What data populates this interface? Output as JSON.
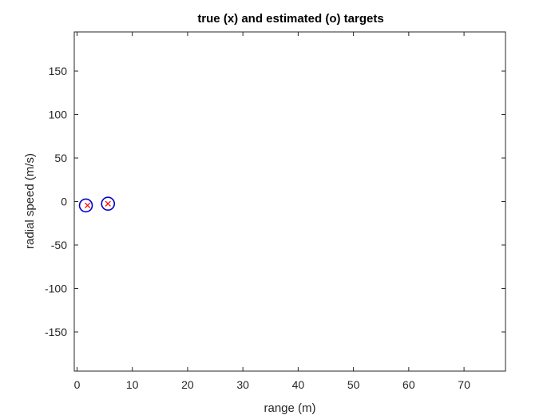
{
  "chart_data": {
    "type": "scatter",
    "title": "true (x) and estimated (o) targets",
    "xlabel": "range (m)",
    "ylabel": "radial speed (m/s)",
    "xlim": [
      -0.5,
      77.5
    ],
    "ylim": [
      -195,
      195
    ],
    "xticks": [
      0,
      10,
      20,
      30,
      40,
      50,
      60,
      70
    ],
    "yticks": [
      -150,
      -100,
      -50,
      0,
      50,
      100,
      150
    ],
    "grid": false,
    "series": [
      {
        "marker": "x",
        "color": "#ff0000",
        "points": [
          [
            1.9,
            -4.5
          ],
          [
            5.6,
            -2.5
          ]
        ]
      },
      {
        "marker": "o",
        "color": "#0000cc",
        "points": [
          [
            1.6,
            -4.5
          ],
          [
            5.6,
            -2.5
          ]
        ]
      }
    ]
  }
}
